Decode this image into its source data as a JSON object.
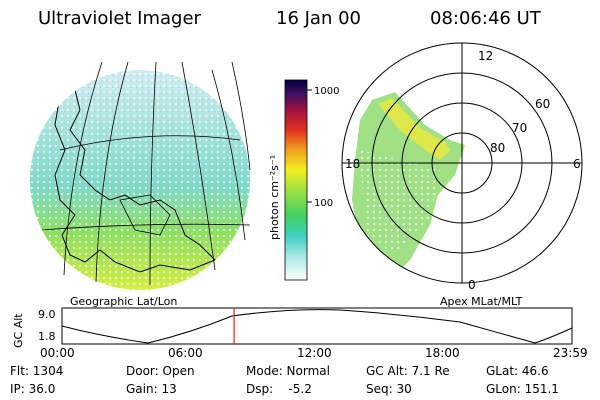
{
  "header": {
    "instrument": "Ultraviolet Imager",
    "date": "16 Jan 00",
    "time": "08:06:46 UT"
  },
  "colorbar": {
    "unit_label": "photon cm⁻²s⁻¹",
    "ticks": [
      "1000",
      "100"
    ]
  },
  "geo_panel": {
    "label": "Geographic Lat/Lon"
  },
  "polar_panel": {
    "label": "Apex MLat/MLT",
    "mlt_labels": {
      "top": "12",
      "left": "18",
      "right": "6",
      "bottom": "0"
    },
    "lat_labels": [
      "60",
      "70",
      "80"
    ]
  },
  "altitude_plot": {
    "ylabel": "GC Alt",
    "y_ticks": [
      "9.0",
      "1.8"
    ],
    "x_ticks": [
      "00:00",
      "06:00",
      "12:00",
      "18:00",
      "23:59"
    ],
    "marker_hours": 8.1
  },
  "status": {
    "flt": "Flt: 1304",
    "door": "Door: Open",
    "mode": "Mode: Normal",
    "gc_alt": "GC Alt: 7.1 Re",
    "glat": "GLat:  46.6",
    "ip": "IP: 36.0",
    "gain": "Gain: 13",
    "dsp": "Dsp:    -5.2",
    "seq": "Seq: 30",
    "glon": "GLon: 151.1"
  },
  "colors": {
    "marker": "#e02020",
    "aurora_low": "#a8e0e0",
    "aurora_mid": "#5fd36a",
    "aurora_high": "#f0f040"
  }
}
